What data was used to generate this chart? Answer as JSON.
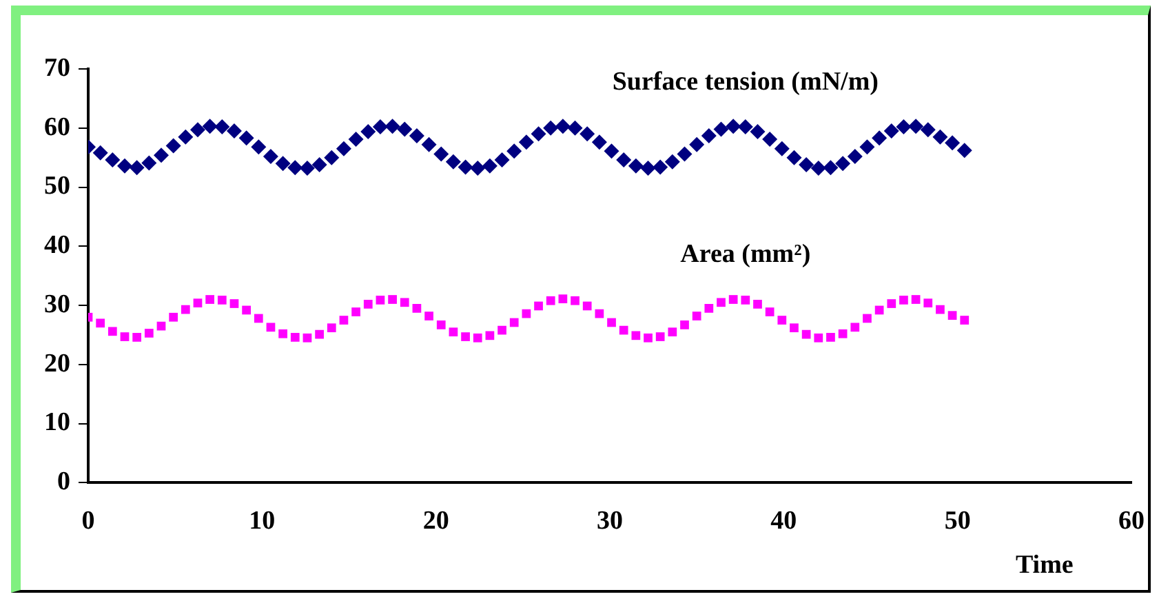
{
  "chart_data": {
    "type": "scatter",
    "xlabel": "Time",
    "xlim": [
      0,
      60
    ],
    "xticks": [
      0,
      10,
      20,
      30,
      40,
      50,
      60
    ],
    "ylim": [
      0,
      70
    ],
    "yticks": [
      0,
      10,
      20,
      30,
      40,
      50,
      60,
      70
    ],
    "grid": false,
    "legend": false,
    "x": [
      0,
      0.7,
      1.4,
      2.1,
      2.8,
      3.5,
      4.2,
      4.9,
      5.6,
      6.3,
      7.0,
      7.7,
      8.4,
      9.1,
      9.8,
      10.5,
      11.2,
      11.9,
      12.6,
      13.3,
      14.0,
      14.7,
      15.4,
      16.1,
      16.8,
      17.5,
      18.2,
      18.9,
      19.6,
      20.3,
      21.0,
      21.7,
      22.4,
      23.1,
      23.8,
      24.5,
      25.2,
      25.9,
      26.6,
      27.3,
      28.0,
      28.7,
      29.4,
      30.1,
      30.8,
      31.5,
      32.2,
      32.9,
      33.6,
      34.3,
      35.0,
      35.7,
      36.4,
      37.1,
      37.8,
      38.5,
      39.2,
      39.9,
      40.6,
      41.3,
      42.0,
      42.7,
      43.4,
      44.1,
      44.8,
      45.5,
      46.2,
      46.9,
      47.6,
      48.3,
      49.0,
      49.7,
      50.4
    ],
    "series": [
      {
        "name": "Surface tension (mN/m)",
        "color": "#000080",
        "marker": "diamond",
        "values": [
          56.8,
          55.8,
          54.6,
          53.6,
          53.3,
          54.1,
          55.4,
          57.0,
          58.5,
          59.7,
          60.3,
          60.2,
          59.5,
          58.3,
          56.8,
          55.2,
          54.0,
          53.3,
          53.2,
          53.8,
          55.0,
          56.5,
          58.1,
          59.4,
          60.2,
          60.3,
          59.8,
          58.7,
          57.2,
          55.6,
          54.3,
          53.4,
          53.2,
          53.6,
          54.6,
          56.1,
          57.6,
          59.0,
          60.0,
          60.3,
          60.0,
          59.0,
          57.6,
          56.1,
          54.6,
          53.6,
          53.2,
          53.4,
          54.3,
          55.6,
          57.2,
          58.7,
          59.8,
          60.3,
          60.2,
          59.4,
          58.1,
          56.5,
          55.0,
          53.8,
          53.2,
          53.3,
          54.0,
          55.2,
          56.8,
          58.3,
          59.5,
          60.2,
          60.3,
          59.7,
          58.5,
          57.5,
          56.2
        ]
      },
      {
        "name": "Area (mm²)",
        "color": "#ff00ff",
        "marker": "square",
        "values": [
          28.0,
          27.0,
          25.6,
          24.7,
          24.6,
          25.3,
          26.5,
          28.0,
          29.3,
          30.4,
          31.0,
          30.9,
          30.3,
          29.2,
          27.8,
          26.3,
          25.2,
          24.6,
          24.5,
          25.1,
          26.2,
          27.5,
          28.9,
          30.2,
          30.9,
          31.0,
          30.5,
          29.5,
          28.2,
          26.7,
          25.5,
          24.7,
          24.5,
          24.9,
          25.8,
          27.1,
          28.6,
          29.9,
          30.8,
          31.1,
          30.8,
          29.9,
          28.6,
          27.1,
          25.8,
          24.9,
          24.5,
          24.7,
          25.5,
          26.7,
          28.2,
          29.5,
          30.5,
          31.0,
          30.9,
          30.2,
          28.9,
          27.5,
          26.2,
          25.1,
          24.5,
          24.6,
          25.2,
          26.3,
          27.8,
          29.2,
          30.3,
          30.9,
          31.0,
          30.4,
          29.3,
          28.3,
          27.5
        ]
      }
    ]
  }
}
